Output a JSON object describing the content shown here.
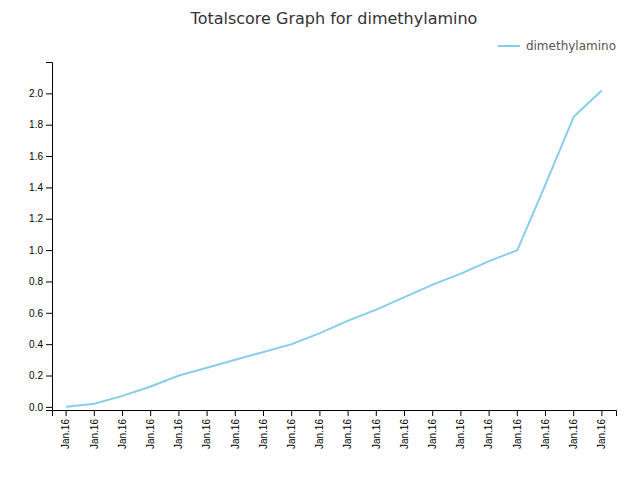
{
  "chart_data": {
    "type": "line",
    "title": "Totalscore Graph for dimethylamino",
    "categories": [
      "Jan.16",
      "Jan.16",
      "Jan.16",
      "Jan.16",
      "Jan.16",
      "Jan.16",
      "Jan.16",
      "Jan.16",
      "Jan.16",
      "Jan.16",
      "Jan.16",
      "Jan.16",
      "Jan.16",
      "Jan.16",
      "Jan.16",
      "Jan.16",
      "Jan.16",
      "Jan.16",
      "Jan.16",
      "Jan.16"
    ],
    "series": [
      {
        "name": "dimethylamino",
        "color": "#87CEEB",
        "values": [
          0.0,
          0.02,
          0.07,
          0.13,
          0.2,
          0.25,
          0.3,
          0.35,
          0.4,
          0.47,
          0.55,
          0.62,
          0.7,
          0.78,
          0.85,
          0.93,
          1.0,
          1.42,
          1.85,
          2.02
        ]
      }
    ],
    "ylim": [
      -0.02,
      2.2
    ],
    "yticks": [
      {
        "value": 0.0,
        "label": "0.0"
      },
      0.2,
      0.4,
      0.6,
      0.8,
      {
        "value": 1.0,
        "label": "1.0"
      },
      1.2,
      1.4,
      1.6,
      1.8,
      {
        "value": 2.0,
        "label": "2.0"
      }
    ],
    "grid": false,
    "legend": "upper right"
  }
}
